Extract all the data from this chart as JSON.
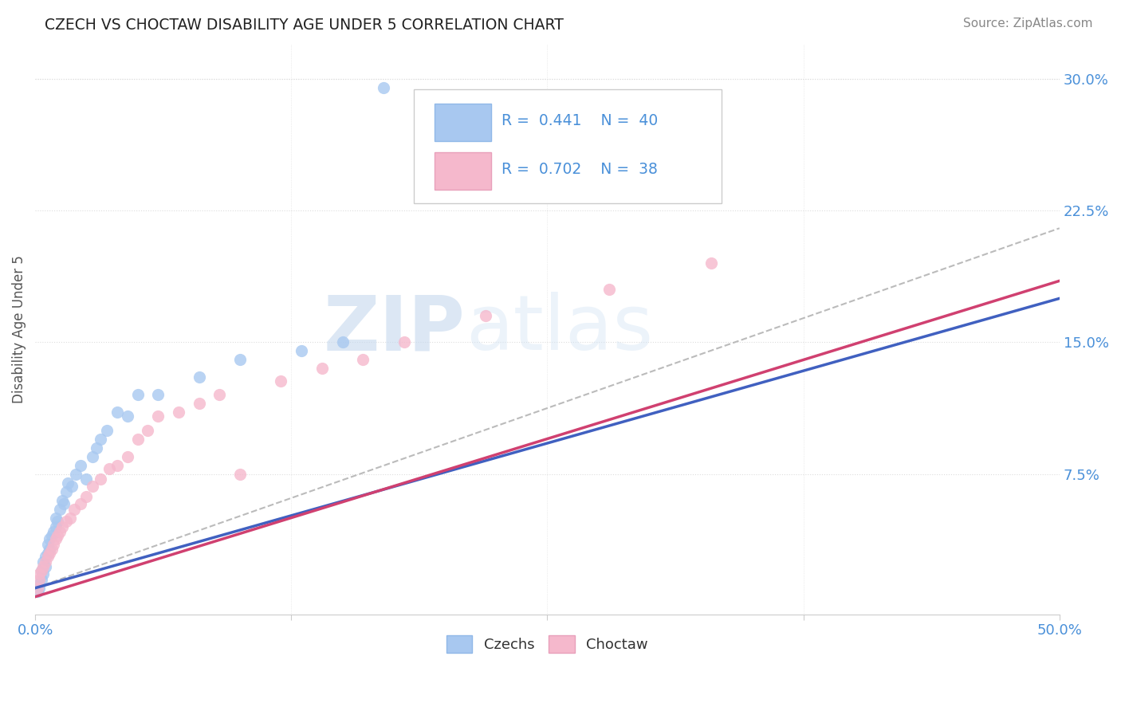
{
  "title": "CZECH VS CHOCTAW DISABILITY AGE UNDER 5 CORRELATION CHART",
  "source_text": "Source: ZipAtlas.com",
  "ylabel": "Disability Age Under 5",
  "xlim": [
    0.0,
    0.5
  ],
  "ylim": [
    -0.005,
    0.32
  ],
  "ytick_labels": [
    "7.5%",
    "15.0%",
    "22.5%",
    "30.0%"
  ],
  "ytick_vals": [
    0.075,
    0.15,
    0.225,
    0.3
  ],
  "czechs_color": "#a8c8f0",
  "choctaw_color": "#f5b8cc",
  "czechs_line_color": "#4060c0",
  "choctaw_line_color": "#d04070",
  "dashed_line_color": "#bbbbbb",
  "R_czech": 0.441,
  "N_czech": 40,
  "R_choctaw": 0.702,
  "N_choctaw": 38,
  "watermark_text": "ZIPatlas",
  "watermark_color": "#dde8f5",
  "background_color": "#ffffff",
  "grid_color": "#dddddd",
  "title_color": "#222222",
  "source_color": "#888888",
  "tick_color": "#4a90d9",
  "ylabel_color": "#555555",
  "legend_text_color": "#4a90d9",
  "legend_R_text_color": "#222222",
  "bottom_legend_color": "#333333",
  "figsize": [
    14.06,
    8.92
  ],
  "dpi": 100,
  "czechs_x": [
    0.001,
    0.002,
    0.002,
    0.003,
    0.003,
    0.004,
    0.004,
    0.005,
    0.005,
    0.006,
    0.006,
    0.007,
    0.007,
    0.008,
    0.009,
    0.01,
    0.01,
    0.011,
    0.012,
    0.013,
    0.014,
    0.015,
    0.016,
    0.018,
    0.02,
    0.022,
    0.025,
    0.028,
    0.03,
    0.032,
    0.035,
    0.04,
    0.045,
    0.05,
    0.06,
    0.08,
    0.1,
    0.13,
    0.15,
    0.17
  ],
  "czechs_y": [
    0.008,
    0.012,
    0.01,
    0.015,
    0.02,
    0.018,
    0.025,
    0.022,
    0.028,
    0.03,
    0.035,
    0.032,
    0.038,
    0.04,
    0.042,
    0.045,
    0.05,
    0.048,
    0.055,
    0.06,
    0.058,
    0.065,
    0.07,
    0.068,
    0.075,
    0.08,
    0.072,
    0.085,
    0.09,
    0.095,
    0.1,
    0.11,
    0.108,
    0.12,
    0.12,
    0.13,
    0.14,
    0.145,
    0.15,
    0.295
  ],
  "choctaw_x": [
    0.001,
    0.002,
    0.002,
    0.003,
    0.004,
    0.005,
    0.006,
    0.007,
    0.008,
    0.009,
    0.01,
    0.011,
    0.012,
    0.013,
    0.015,
    0.017,
    0.019,
    0.022,
    0.025,
    0.028,
    0.032,
    0.036,
    0.04,
    0.045,
    0.05,
    0.055,
    0.06,
    0.07,
    0.08,
    0.09,
    0.1,
    0.12,
    0.14,
    0.16,
    0.18,
    0.22,
    0.28,
    0.33
  ],
  "choctaw_y": [
    0.01,
    0.015,
    0.018,
    0.02,
    0.022,
    0.025,
    0.028,
    0.03,
    0.032,
    0.035,
    0.038,
    0.04,
    0.042,
    0.045,
    0.048,
    0.05,
    0.055,
    0.058,
    0.062,
    0.068,
    0.072,
    0.078,
    0.08,
    0.085,
    0.095,
    0.1,
    0.108,
    0.11,
    0.115,
    0.12,
    0.075,
    0.128,
    0.135,
    0.14,
    0.15,
    0.165,
    0.18,
    0.195
  ]
}
